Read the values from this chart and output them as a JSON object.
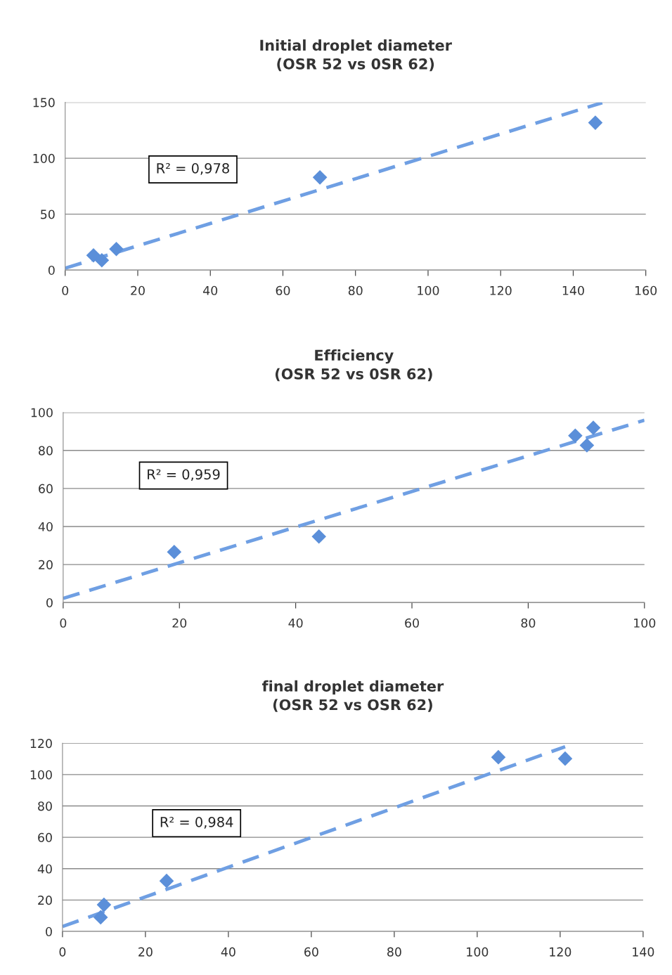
{
  "chart_data": [
    {
      "type": "scatter",
      "title": "Initial droplet diameter\n(OSR 52 vs 0SR 62)",
      "xlim": [
        0,
        160
      ],
      "xticks": [
        0,
        20,
        40,
        60,
        80,
        100,
        120,
        140,
        160
      ],
      "ylim": [
        0,
        150
      ],
      "yticks": [
        0,
        50,
        100,
        150
      ],
      "grid": "y",
      "annotations": [
        "R² = 0,978"
      ],
      "series": [
        {
          "type": "scatter",
          "color": "#5b8fd9",
          "marker": "diamond",
          "x": [
            7.8,
            10.1,
            14.1,
            70.2,
            146.1
          ],
          "values": [
            13.2,
            8.8,
            18.8,
            82.9,
            131.8
          ]
        },
        {
          "type": "line",
          "color": "#6f9fe3",
          "marker": "none",
          "line_style": "dashed",
          "x": [
            0,
            148
          ],
          "values": [
            1.7,
            149.7
          ]
        }
      ]
    },
    {
      "type": "scatter",
      "title": "Efficiency\n(OSR 52 vs 0SR 62)",
      "xlim": [
        0,
        100
      ],
      "xticks": [
        0,
        20,
        40,
        60,
        80,
        100
      ],
      "ylim": [
        0,
        100
      ],
      "yticks": [
        0,
        20,
        40,
        60,
        80,
        100
      ],
      "grid": "y",
      "annotations": [
        "R² = 0,959"
      ],
      "series": [
        {
          "type": "scatter",
          "color": "#5b8fd9",
          "marker": "diamond",
          "x": [
            19.1,
            44.0,
            88.1,
            90.1,
            91.2
          ],
          "values": [
            26.6,
            34.7,
            87.8,
            82.7,
            91.9
          ]
        },
        {
          "type": "line",
          "color": "#6f9fe3",
          "marker": "none",
          "line_style": "dashed",
          "x": [
            0,
            100
          ],
          "values": [
            2.2,
            95.9
          ]
        }
      ]
    },
    {
      "type": "scatter",
      "title": "final droplet diameter\n(OSR 52 vs OSR 62)",
      "xlim": [
        0,
        140
      ],
      "xticks": [
        0,
        20,
        40,
        60,
        80,
        100,
        120,
        140
      ],
      "ylim": [
        0,
        120
      ],
      "yticks": [
        0,
        20,
        40,
        60,
        80,
        100,
        120
      ],
      "grid": "y",
      "annotations": [
        "R² = 0,984"
      ],
      "series": [
        {
          "type": "scatter",
          "color": "#5b8fd9",
          "marker": "diamond",
          "x": [
            9.2,
            10.0,
            25.1,
            105.1,
            121.2
          ],
          "values": [
            9.0,
            17.0,
            32.2,
            111.1,
            110.2
          ]
        },
        {
          "type": "line",
          "color": "#6f9fe3",
          "marker": "none",
          "line_style": "dashed",
          "x": [
            0,
            121.2
          ],
          "values": [
            3.1,
            117.8
          ]
        }
      ]
    }
  ]
}
